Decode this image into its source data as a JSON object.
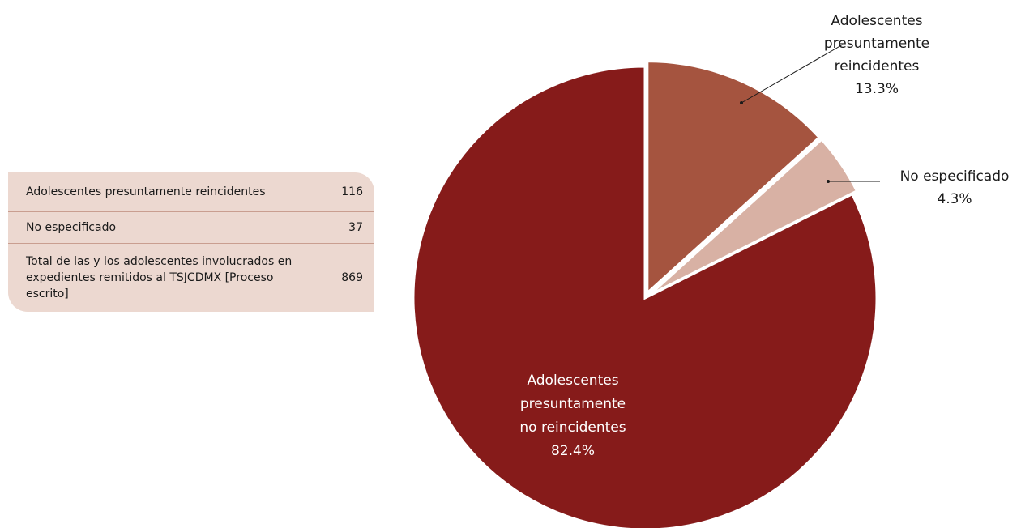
{
  "chart_data": {
    "type": "pie",
    "categories": [
      [
        "Adolescentes",
        "presuntamente",
        "reincidentes"
      ],
      [
        "No especificado"
      ],
      [
        "Adolescentes",
        "presuntamente",
        "no reincidentes"
      ]
    ],
    "values": [
      13.3,
      4.3,
      82.4
    ],
    "value_labels": [
      "13.3%",
      "4.3%",
      "82.4%"
    ],
    "colors": [
      "#a5543f",
      "#d8b1a4",
      "#861b1a"
    ]
  },
  "table": {
    "rows": [
      [
        "Adolescentes presuntamente reincidentes",
        "116"
      ],
      [
        "No especificado",
        "37"
      ],
      [
        "Total de las y los adolescentes involucrados en expedientes remitidos al TSJCDMX [Proceso escrito]",
        "869"
      ]
    ]
  }
}
